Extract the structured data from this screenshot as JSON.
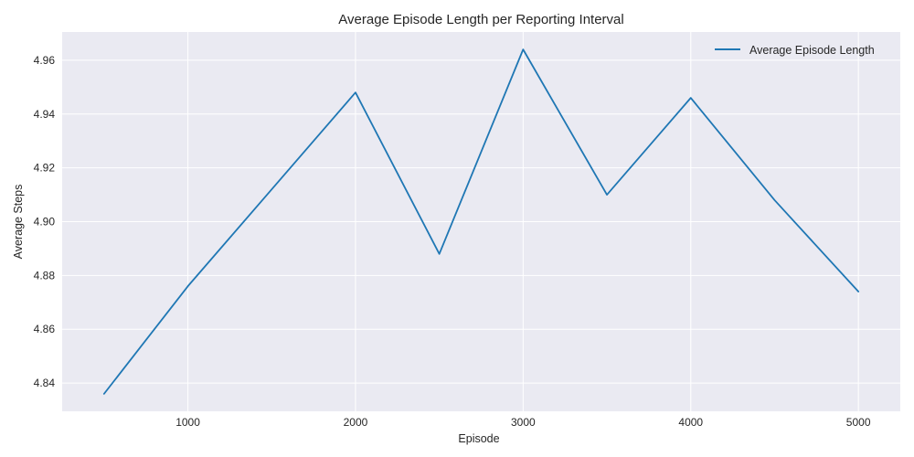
{
  "chart_data": {
    "type": "line",
    "title": "Average Episode Length per Reporting Interval",
    "xlabel": "Episode",
    "ylabel": "Average Steps",
    "x": [
      500,
      1000,
      1500,
      2000,
      2500,
      3000,
      3500,
      4000,
      4500,
      5000
    ],
    "series": [
      {
        "name": "Average Episode Length",
        "values": [
          4.836,
          4.876,
          4.912,
          4.948,
          4.888,
          4.964,
          4.91,
          4.946,
          4.908,
          4.874
        ],
        "color": "#1f77b4"
      }
    ],
    "xlim": [
      250,
      5250
    ],
    "ylim": [
      4.8295,
      4.9705
    ],
    "xticks": [
      1000,
      2000,
      3000,
      4000,
      5000
    ],
    "xtick_labels": [
      "1000",
      "2000",
      "3000",
      "4000",
      "5000"
    ],
    "yticks": [
      4.84,
      4.86,
      4.88,
      4.9,
      4.92,
      4.94,
      4.96
    ],
    "ytick_labels": [
      "4.84",
      "4.86",
      "4.88",
      "4.90",
      "4.92",
      "4.94",
      "4.96"
    ],
    "grid": true,
    "legend_position": "top-right",
    "colors": {
      "plot_background": "#eaeaf2",
      "grid": "#ffffff",
      "text": "#262626"
    }
  }
}
